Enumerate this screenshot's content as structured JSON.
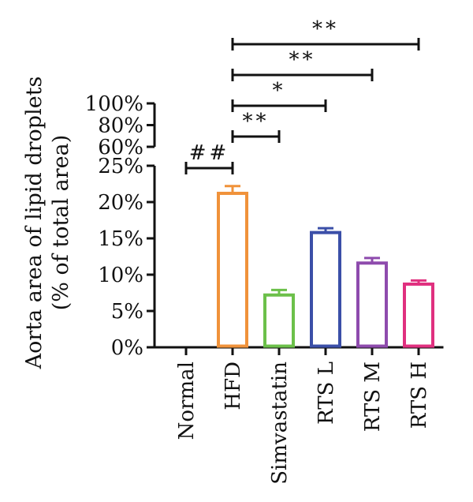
{
  "chart_data": {
    "type": "bar",
    "title": "",
    "ylabel_lines": [
      "Aorta area of lipid droplets",
      "(% of total area)"
    ],
    "xlabel": "",
    "categories": [
      "Normal",
      "HFD",
      "Simvastatin",
      "RTS L",
      "RTS M",
      "RTS H"
    ],
    "values": [
      0,
      21.2,
      7.2,
      15.8,
      11.6,
      8.7
    ],
    "errors": [
      0,
      1.0,
      0.7,
      0.6,
      0.7,
      0.5
    ],
    "colors": [
      "#000000",
      "#f0923a",
      "#6cc04a",
      "#3b4fa8",
      "#8e4bad",
      "#e0307f"
    ],
    "y_axis": {
      "broken": true,
      "lower_range": [
        0,
        25
      ],
      "lower_ticks": [
        "0%",
        "5%",
        "10%",
        "15%",
        "20%",
        "25%"
      ],
      "upper_range": [
        60,
        100
      ],
      "upper_ticks": [
        "60%",
        "80%",
        "100%"
      ]
    },
    "significance": [
      {
        "from": "Normal",
        "to": "HFD",
        "label": "##"
      },
      {
        "from": "HFD",
        "to": "Simvastatin",
        "label": "**"
      },
      {
        "from": "HFD",
        "to": "RTS L",
        "label": "*"
      },
      {
        "from": "HFD",
        "to": "RTS M",
        "label": "**"
      },
      {
        "from": "HFD",
        "to": "RTS H",
        "label": "**"
      }
    ],
    "grid": false,
    "legend": "none"
  }
}
